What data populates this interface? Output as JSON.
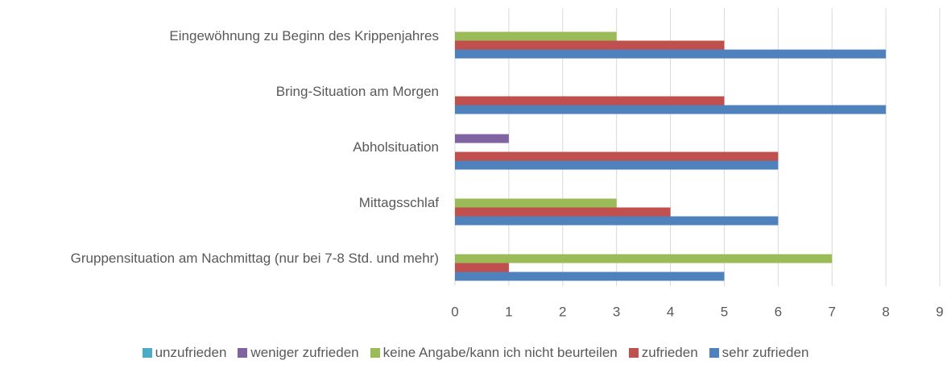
{
  "chart_data": {
    "type": "hbar",
    "categories": [
      "Eingewöhnung zu Beginn des Krippenjahres",
      "Bring-Situation am Morgen",
      "Abholsituation",
      "Mittagsschlaf",
      "Gruppensituation am Nachmittag (nur bei 7-8 Std. und mehr)"
    ],
    "series": [
      {
        "name": "unzufrieden",
        "color": "#4bacc6",
        "values": [
          0,
          0,
          0,
          0,
          0
        ]
      },
      {
        "name": "weniger zufrieden",
        "color": "#8064a2",
        "values": [
          0,
          0,
          1,
          0,
          0
        ]
      },
      {
        "name": "keine Angabe/kann ich nicht beurteilen",
        "color": "#9bbb59",
        "values": [
          3,
          0,
          0,
          3,
          7
        ]
      },
      {
        "name": "zufrieden",
        "color": "#c0504d",
        "values": [
          5,
          5,
          6,
          4,
          1
        ]
      },
      {
        "name": "sehr zufrieden",
        "color": "#4f81bd",
        "values": [
          8,
          8,
          6,
          6,
          5
        ]
      }
    ],
    "xlim": [
      0,
      9
    ],
    "xticks": [
      0,
      1,
      2,
      3,
      4,
      5,
      6,
      7,
      8,
      9
    ],
    "grid": true,
    "legend": "bottom"
  }
}
